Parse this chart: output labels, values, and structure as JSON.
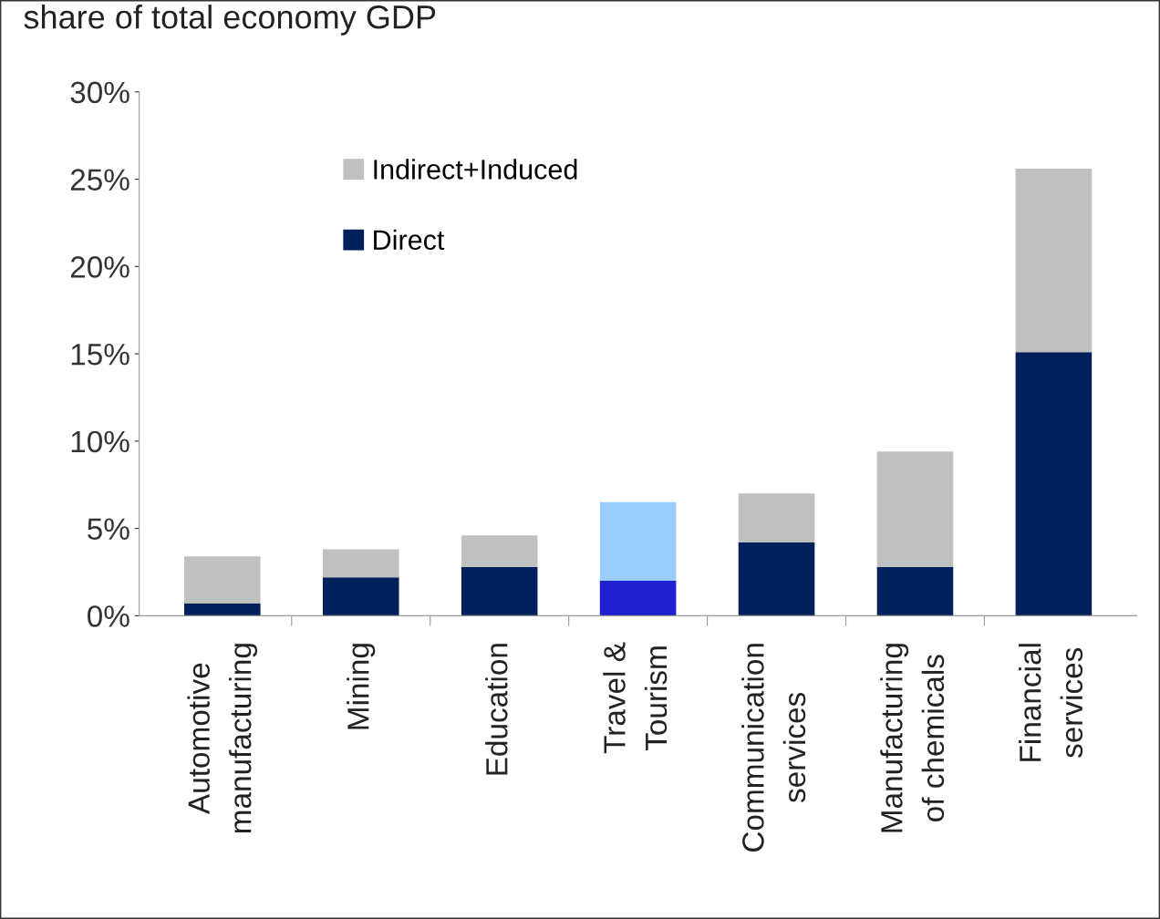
{
  "chart_data": {
    "type": "bar",
    "stacked": true,
    "title": "share of total economy GDP",
    "categories": [
      "Automotive\nmanufacturing",
      "Mining",
      "Education",
      "Travel &\nTourism",
      "Communication\nservices",
      "Manufacturing\nof chemicals",
      "Financial\nservices"
    ],
    "series": [
      {
        "name": "Direct",
        "color": "#00205b",
        "colors": [
          "#00205b",
          "#00205b",
          "#00205b",
          "#1f1fd0",
          "#00205b",
          "#00205b",
          "#00205b"
        ],
        "values": [
          0.7,
          2.2,
          2.8,
          2.0,
          4.2,
          2.8,
          15.1
        ]
      },
      {
        "name": "Indirect+Induced",
        "color": "#c0c0c0",
        "colors": [
          "#c0c0c0",
          "#c0c0c0",
          "#c0c0c0",
          "#99ccff",
          "#c0c0c0",
          "#c0c0c0",
          "#c0c0c0"
        ],
        "values": [
          2.7,
          1.6,
          1.8,
          4.5,
          2.8,
          6.6,
          10.5
        ]
      }
    ],
    "ylim": [
      0,
      30
    ],
    "yticks": [
      {
        "value": 0,
        "label": "0%"
      },
      {
        "value": 5,
        "label": "5%"
      },
      {
        "value": 10,
        "label": "10%"
      },
      {
        "value": 15,
        "label": "15%"
      },
      {
        "value": 20,
        "label": "20%"
      },
      {
        "value": 25,
        "label": "25%"
      },
      {
        "value": 30,
        "label": "30%"
      }
    ],
    "grid": false,
    "legend": "top left"
  }
}
